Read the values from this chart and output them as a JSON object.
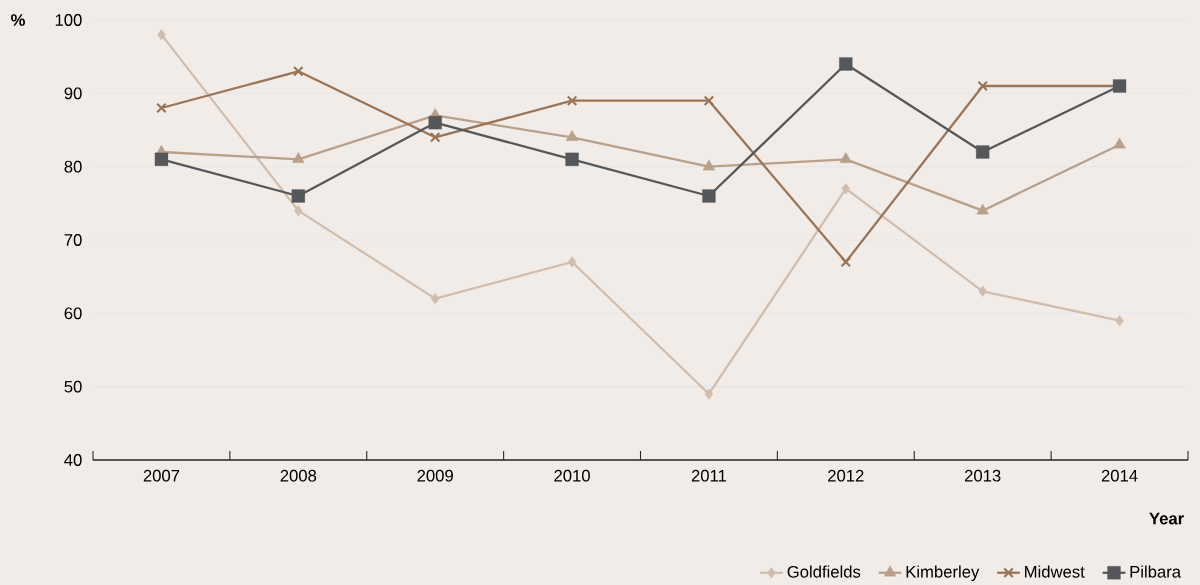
{
  "chart_data": {
    "type": "line",
    "ylabel": "%",
    "xlabel": "Year",
    "categories": [
      "2007",
      "2008",
      "2009",
      "2010",
      "2011",
      "2012",
      "2013",
      "2014"
    ],
    "ylim": [
      40,
      100
    ],
    "yticks": [
      40,
      50,
      60,
      70,
      80,
      90,
      100
    ],
    "grid": "y",
    "legend": "bottom right",
    "series": [
      {
        "name": "Goldfields",
        "color": "#d2bdac",
        "marker": "diamond",
        "values": [
          98,
          74,
          62,
          67,
          49,
          77,
          63,
          59
        ]
      },
      {
        "name": "Kimberley",
        "color": "#b8a08a",
        "marker": "triangle",
        "values": [
          82,
          81,
          87,
          84,
          80,
          81,
          74,
          83
        ]
      },
      {
        "name": "Midwest",
        "color": "#9a7456",
        "marker": "cross",
        "values": [
          88,
          93,
          84,
          89,
          89,
          67,
          91,
          91
        ]
      },
      {
        "name": "Pilbara",
        "color": "#55575a",
        "marker": "square",
        "values": [
          81,
          76,
          86,
          81,
          76,
          94,
          82,
          91
        ]
      }
    ]
  }
}
